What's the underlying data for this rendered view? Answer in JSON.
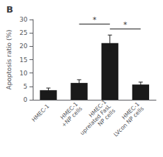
{
  "chart_data": {
    "type": "bar",
    "title": "B",
    "categories": [
      "HMEC-1",
      "HMEC-1\n+NP cells",
      "HMEC-1\nuprelated FasL\nNP cells",
      "HMEC-1\nLVcon NP cells"
    ],
    "values": [
      3.6,
      6.3,
      21.2,
      5.7
    ],
    "errors": [
      0.8,
      1.2,
      3.0,
      0.9
    ],
    "color": "#1a1a1a",
    "ylabel": "Apoptosis ratio (%)",
    "ylim": [
      0,
      30
    ],
    "yticks": [
      0,
      5,
      10,
      15,
      20,
      25,
      30
    ],
    "grid": false,
    "sig_lines": [
      {
        "from": "HMEC-1\n+NP cells",
        "to": "HMEC-1\nuprelated FasL\nNP cells",
        "y": 28.5,
        "label": "*"
      },
      {
        "from": "HMEC-1\nuprelated FasL\nNP cells",
        "to": "HMEC-1\nLVcon NP cells",
        "y": 26.5,
        "label": "*"
      }
    ]
  }
}
